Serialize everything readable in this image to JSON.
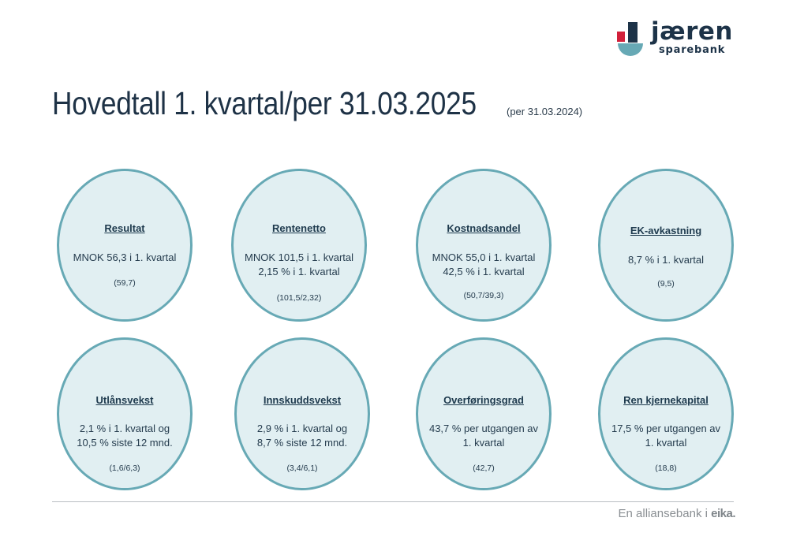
{
  "logo": {
    "name": "jæren",
    "sub": "sparebank",
    "colors": {
      "red": "#d2203a",
      "navy": "#1d3348",
      "teal": "#67a9b5"
    }
  },
  "title": "Hovedtall 1. kvartal/per 31.03.2025",
  "title_sub": "(per 31.03.2024)",
  "kpis": [
    {
      "head": "Resultat",
      "line1": "MNOK 56,3 i 1. kvartal",
      "line2": "",
      "prev": "(59,7)"
    },
    {
      "head": "Rentenetto",
      "line1": "MNOK 101,5 i 1. kvartal",
      "line2": "2,15 % i 1. kvartal",
      "prev": "(101,5/2,32)"
    },
    {
      "head": "Kostnadsandel",
      "line1": "MNOK 55,0 i 1. kvartal",
      "line2": "42,5 % i 1. kvartal",
      "prev": "(50,7/39,3)"
    },
    {
      "head": "EK-avkastning",
      "line1": "8,7 % i 1. kvartal",
      "line2": "",
      "prev": "(9,5)"
    },
    {
      "head": "Utlånsvekst",
      "line1": "2,1 % i 1. kvartal og",
      "line2": "10,5 % siste 12 mnd.",
      "prev": "(1,6/6,3)"
    },
    {
      "head": "Innskuddsvekst",
      "line1": "2,9 % i 1. kvartal og",
      "line2": "8,7 % siste 12 mnd.",
      "prev": "(3,4/6,1)"
    },
    {
      "head": "Overføringsgrad",
      "line1": "43,7 % per utgangen av",
      "line2": "1. kvartal",
      "prev": "(42,7)"
    },
    {
      "head": "Ren kjernekapital",
      "line1": "17,5 % per utgangen av",
      "line2": "1. kvartal",
      "prev": "(18,8)"
    }
  ],
  "footer": {
    "text": "En alliansebank i",
    "brand": "eika."
  }
}
